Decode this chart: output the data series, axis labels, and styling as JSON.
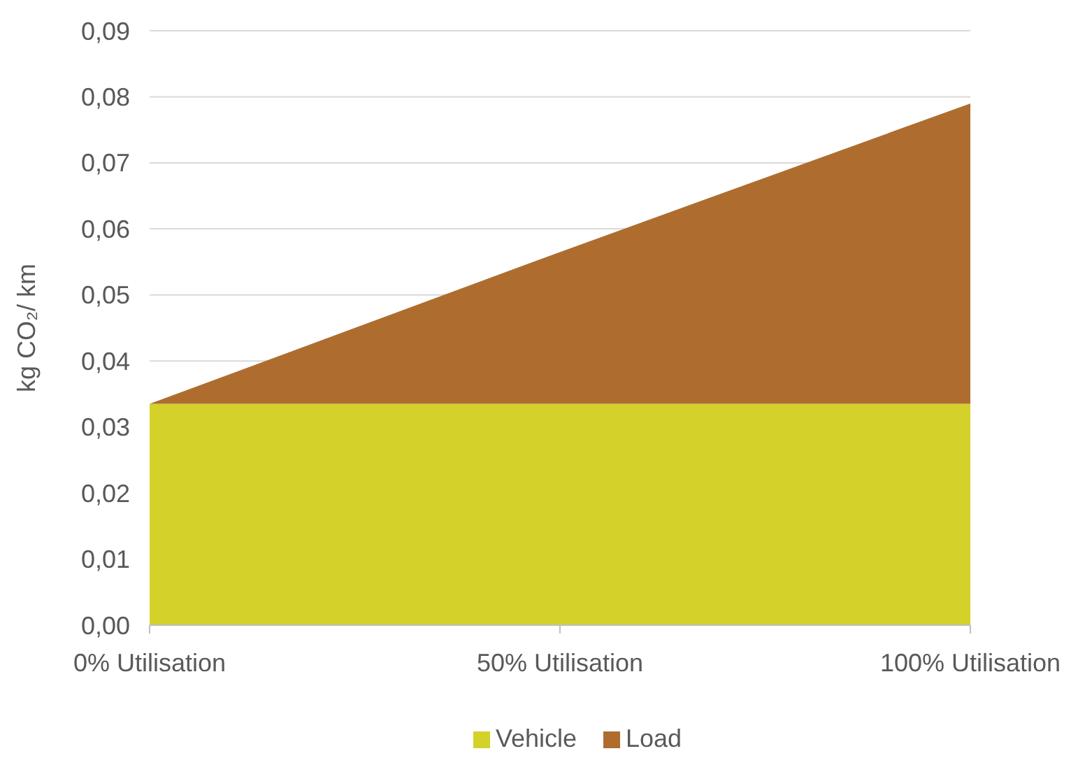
{
  "chart_data": {
    "type": "area",
    "ylabel": "kg CO₂/ km",
    "categories": [
      "0% Utilisation",
      "50% Utilisation",
      "100% Utilisation"
    ],
    "stacked": true,
    "series": [
      {
        "name": "Vehicle",
        "color": "#d4d12a",
        "values": [
          0.0335,
          0.0335,
          0.0335
        ]
      },
      {
        "name": "Load",
        "color": "#ae6d2f",
        "values": [
          0,
          0.023,
          0.0455
        ]
      }
    ],
    "ylim": [
      0,
      0.09
    ],
    "yticks": [
      {
        "value": 0,
        "label": "0,00"
      },
      {
        "value": 0.01,
        "label": "0,01"
      },
      {
        "value": 0.02,
        "label": "0,02"
      },
      {
        "value": 0.03,
        "label": "0,03"
      },
      {
        "value": 0.04,
        "label": "0,04"
      },
      {
        "value": 0.05,
        "label": "0,05"
      },
      {
        "value": 0.06,
        "label": "0,06"
      },
      {
        "value": 0.07,
        "label": "0,07"
      },
      {
        "value": 0.08,
        "label": "0,08"
      },
      {
        "value": 0.09,
        "label": "0,09"
      }
    ],
    "grid": "y",
    "legend": "bottom"
  }
}
